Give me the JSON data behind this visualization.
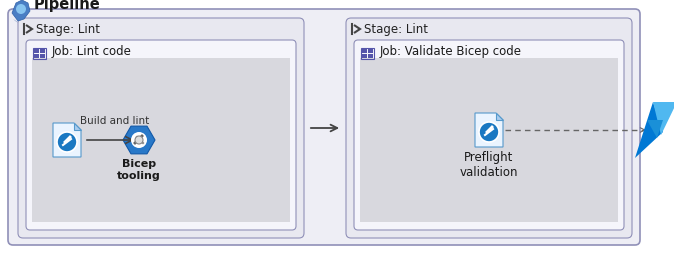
{
  "title": "Pipeline",
  "stage1_label": "Stage: Lint",
  "stage2_label": "Stage: Lint",
  "job1_label": "Job: Lint code",
  "job2_label": "Job: Validate Bicep code",
  "task1_label": "Build and lint",
  "task1_node": "Bicep\ntooling",
  "task2_label": "Preflight\nvalidation",
  "bg_outer_fill": "#eeeef5",
  "bg_outer_edge": "#9090b8",
  "bg_stage_fill": "#e8e8f0",
  "bg_stage_edge": "#9090b8",
  "bg_job_fill": "#f5f5fb",
  "bg_job_edge": "#9090b8",
  "bg_task_fill": "#d8d8de",
  "arrow_color": "#444444",
  "dashed_color": "#666666",
  "text_dark": "#1a1a1a",
  "text_mid": "#444444",
  "job_icon_color": "#5555aa",
  "doc_fill": "#eaf4ff",
  "doc_edge": "#5599cc",
  "doc_fold_fill": "#aaccee",
  "hex_fill": "#2878c8",
  "hex_edge": "#1058a8",
  "azure_left": "#0078d4",
  "azure_right": "#50b8f0",
  "azure_mid": "#1a90d8"
}
